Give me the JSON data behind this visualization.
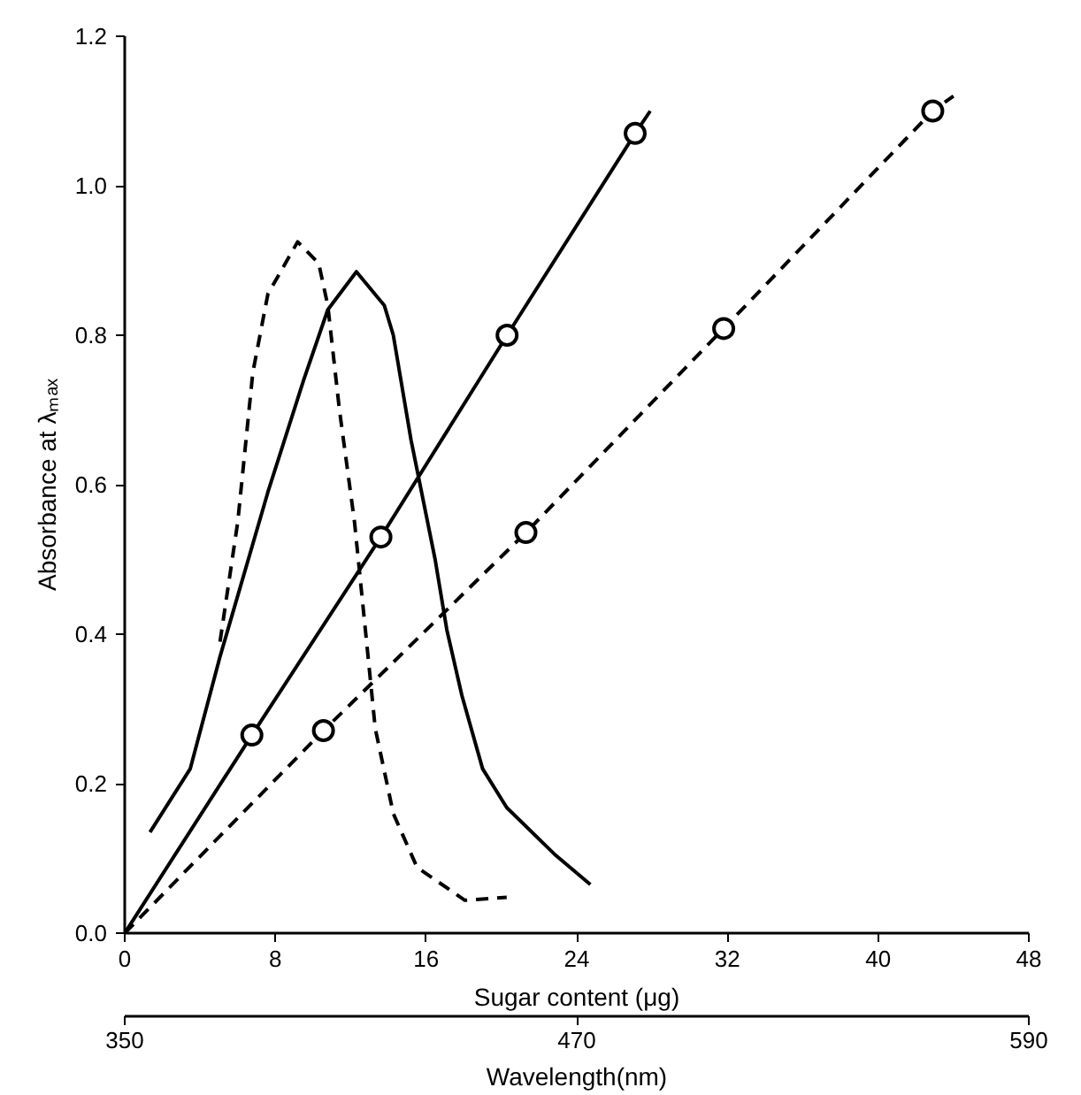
{
  "chart_data": {
    "type": "line",
    "xlabel": "Sugar content (μg)",
    "ylabel": "Absorbance at λₘₐₓ",
    "x2label": "Wavelength(nm)",
    "xlim": [
      0,
      48
    ],
    "xticks": [
      0,
      8,
      16,
      24,
      32,
      40,
      48
    ],
    "ylim": [
      0,
      1.2
    ],
    "yticks": [
      {
        "value": 0,
        "label": "0.0"
      },
      0.2,
      0.4,
      0.6,
      0.8,
      {
        "value": 1.0,
        "label": "1.0"
      },
      1.2
    ],
    "x2lim": [
      350,
      590
    ],
    "x2ticks": [
      350,
      470,
      590
    ],
    "grid": false,
    "series": [
      {
        "color": "#000000",
        "line_style": "solid",
        "x": [
          0,
          6.75,
          13.6,
          20.3,
          27.1,
          27.9
        ],
        "values": [
          0,
          0.265,
          0.53,
          0.8,
          1.07,
          1.1
        ]
      },
      {
        "type": "scatter",
        "color": "#000000",
        "marker": "circle",
        "x": [
          6.75,
          13.6,
          20.3,
          27.1
        ],
        "values": [
          0.265,
          0.53,
          0.8,
          1.07
        ]
      },
      {
        "color": "#000000",
        "line_style": "dashed",
        "x": [
          0,
          10.55,
          21.3,
          31.8,
          42.9,
          44.0
        ],
        "values": [
          0,
          0.271,
          0.536,
          0.809,
          1.1,
          1.12
        ]
      },
      {
        "type": "scatter",
        "color": "#000000",
        "marker": "circle",
        "x": [
          10.55,
          21.3,
          31.8,
          42.9
        ],
        "values": [
          0.271,
          0.536,
          0.809,
          1.1
        ]
      },
      {
        "color": "#000000",
        "line_style": "solid",
        "axis": "x2",
        "x": [
          356.7,
          367.4,
          375.3,
          388,
          397.5,
          403.9,
          411.5,
          418.9,
          421.3,
          426,
          432.4,
          435.5,
          439.5,
          445,
          451.4,
          464,
          473.6
        ],
        "values": [
          0.135,
          0.22,
          0.37,
          0.59,
          0.74,
          0.834,
          0.885,
          0.84,
          0.8,
          0.66,
          0.5,
          0.406,
          0.318,
          0.22,
          0.168,
          0.106,
          0.065
        ]
      },
      {
        "color": "#000000",
        "line_style": "dashed",
        "axis": "x2",
        "x": [
          375.3,
          380,
          384,
          388,
          395.9,
          401.5,
          403.9,
          407,
          411,
          414.2,
          416.5,
          421.3,
          427.6,
          440.3,
          451.4
        ],
        "values": [
          0.39,
          0.55,
          0.75,
          0.855,
          0.925,
          0.896,
          0.84,
          0.7,
          0.55,
          0.39,
          0.274,
          0.16,
          0.088,
          0.044,
          0.048
        ]
      }
    ]
  }
}
